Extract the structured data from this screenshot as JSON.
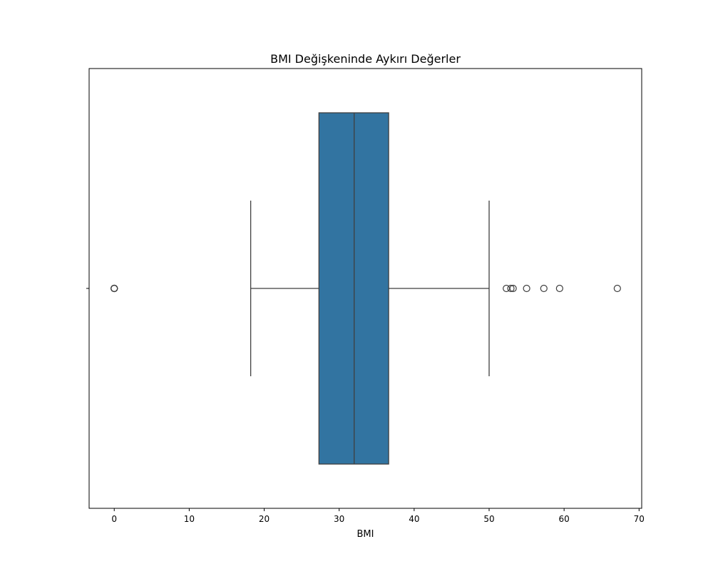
{
  "chart_data": {
    "type": "box",
    "orientation": "horizontal",
    "title": "BMI Değişkeninde Aykırı Değerler",
    "xlabel": "BMI",
    "ylabel": "",
    "xlim": [
      -3.35,
      70.35
    ],
    "xticks": [
      0,
      10,
      20,
      30,
      40,
      50,
      60,
      70
    ],
    "xtick_labels": [
      "0",
      "10",
      "20",
      "30",
      "40",
      "50",
      "60",
      "70"
    ],
    "grid": false,
    "box": {
      "whisker_low": 18.2,
      "q1": 27.3,
      "median": 32.0,
      "q3": 36.6,
      "whisker_high": 50.0,
      "outliers": [
        0,
        0,
        0,
        0,
        0,
        52.3,
        52.9,
        53.2,
        55.0,
        57.3,
        59.4,
        67.1
      ]
    },
    "colors": {
      "box_fill": "#3274a1",
      "line": "#3f3f3f",
      "axes": "#000000"
    }
  }
}
